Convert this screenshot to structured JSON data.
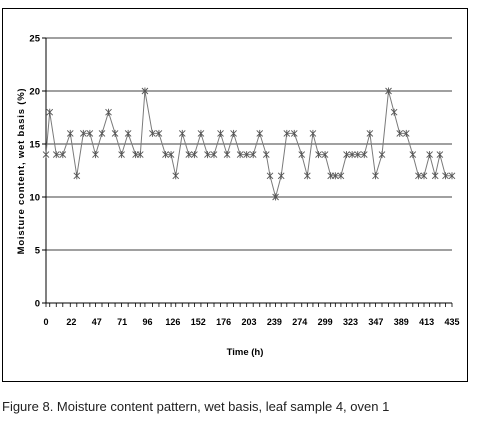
{
  "caption": "Figure 8. Moisture content pattern, wet basis, leaf sample 4, oven 1",
  "colors": {
    "line": "#7a7a7a",
    "marker": "#555555",
    "grid": "#000000",
    "axis": "#000000",
    "text": "#000000"
  },
  "chart_data": {
    "type": "line",
    "title": "",
    "xlabel": "Time (h)",
    "ylabel": "Moisture content, wet basis (%)",
    "ylim": [
      0,
      25
    ],
    "yticks": [
      0,
      5,
      10,
      15,
      20,
      25
    ],
    "xlim": [
      0,
      435
    ],
    "xticks": [
      "0",
      "22",
      "47",
      "71",
      "96",
      "126",
      "152",
      "176",
      "203",
      "239",
      "274",
      "299",
      "323",
      "347",
      "389",
      "413",
      "435"
    ],
    "grid": "horizontal",
    "marker": "asterisk",
    "series": [
      {
        "x": [
          0,
          4,
          11,
          18,
          26,
          33,
          40,
          47,
          53,
          60,
          67,
          74,
          81,
          88,
          96,
          101,
          106,
          114,
          121,
          128,
          134,
          139,
          146,
          153,
          159,
          166,
          173,
          180,
          187,
          194,
          201,
          208,
          215,
          222,
          229,
          236,
          240,
          246,
          252,
          258,
          266,
          274,
          280,
          286,
          292,
          299,
          305,
          310,
          316,
          322,
          328,
          334,
          341,
          347,
          353,
          360,
          367,
          373,
          379,
          386,
          393,
          399,
          405,
          411,
          417,
          422,
          428,
          435
        ],
        "y": [
          14,
          18,
          14,
          14,
          16,
          12,
          16,
          16,
          14,
          16,
          18,
          16,
          14,
          16,
          14,
          14,
          20,
          16,
          16,
          14,
          14,
          12,
          16,
          14,
          14,
          16,
          14,
          14,
          16,
          14,
          16,
          14,
          14,
          14,
          16,
          14,
          12,
          10,
          12,
          16,
          16,
          14,
          12,
          16,
          14,
          14,
          12,
          12,
          12,
          14,
          14,
          14,
          14,
          16,
          12,
          14,
          20,
          18,
          16,
          16,
          14,
          12,
          12,
          14,
          12,
          14,
          12,
          12
        ]
      }
    ]
  }
}
